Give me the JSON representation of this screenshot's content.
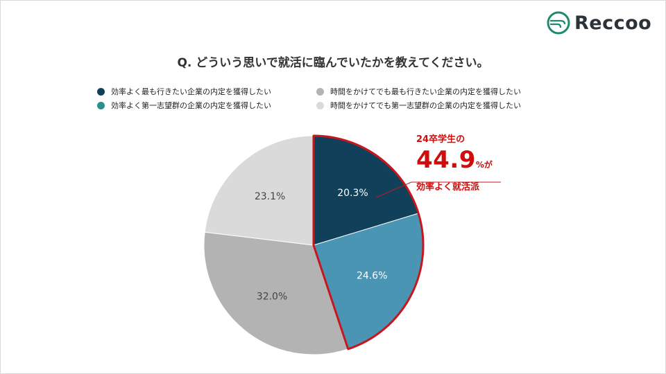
{
  "brand": {
    "name": "Reccoo",
    "accent": "#1e8a6b"
  },
  "chart_data": {
    "type": "pie",
    "title": "Q. どういう思いで就活に臨んでいたかを教えてください。",
    "categories": [
      "効率よく最も行きたい企業の内定を獲得したい",
      "効率よく第一志望群の企業の内定を獲得したい",
      "時間をかけてでも最も行きたい企業の内定を獲得したい",
      "時間をかけてでも第一志望群の企業の内定を獲得したい"
    ],
    "values": [
      20.3,
      24.6,
      32.0,
      23.1
    ],
    "labels": [
      "20.3%",
      "24.6%",
      "32.0%",
      "23.1%"
    ],
    "colors": [
      "#10405a",
      "#4a94b4",
      "#b3b3b3",
      "#dadada"
    ],
    "legend_colors": [
      "#10405a",
      "#2a8f8d",
      "#b3b3b3",
      "#dadada"
    ],
    "legend_position": "top",
    "highlight": {
      "series_indices": [
        0,
        1
      ],
      "color": "#c8161d"
    }
  },
  "callout": {
    "line1": "24卒学生の",
    "big": "44.9",
    "suffix": "%が",
    "line3": "効率よく就活派"
  }
}
